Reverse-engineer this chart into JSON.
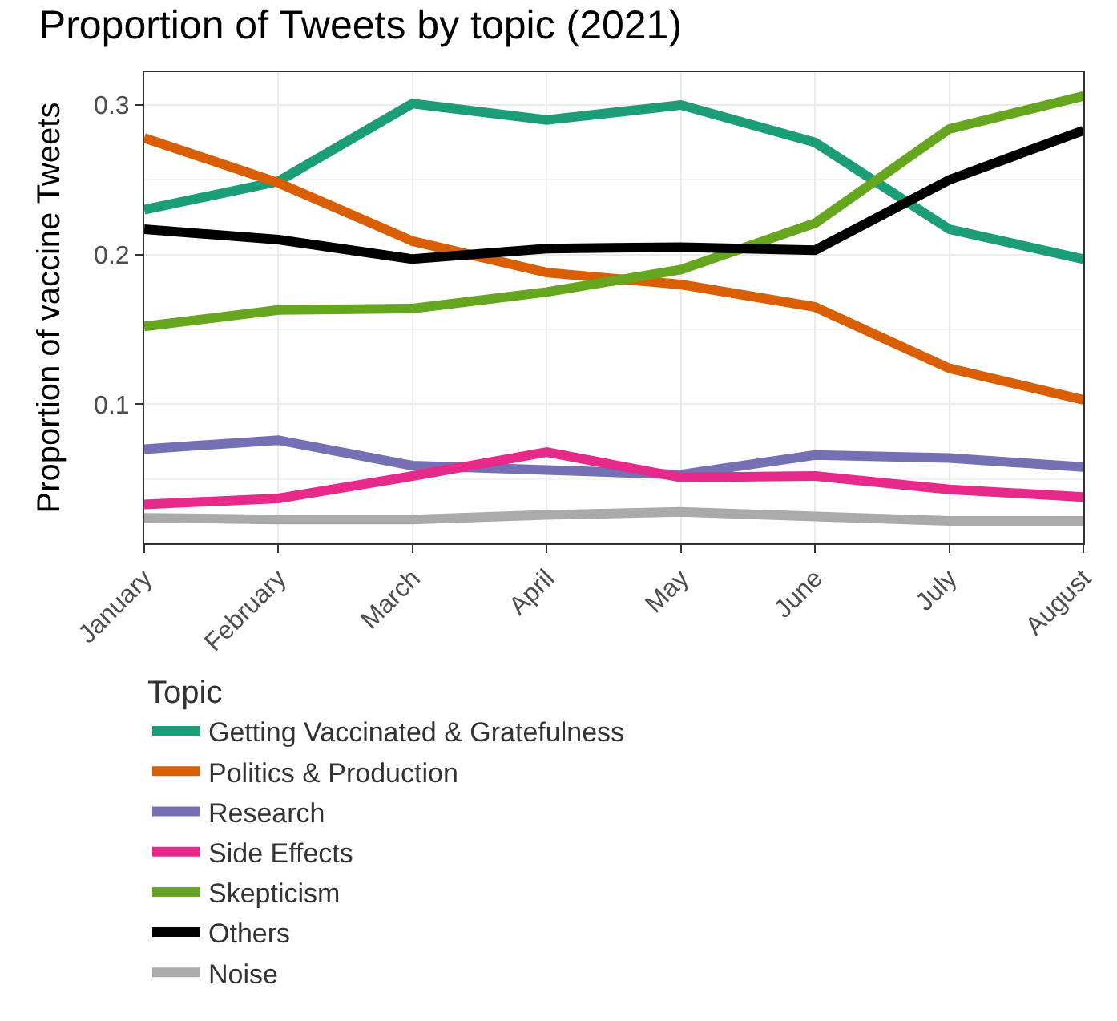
{
  "chart_data": {
    "type": "line",
    "title": "Proportion of Tweets by topic (2021)",
    "ylabel": "Proportion of vaccine Tweets",
    "legend_title": "Topic",
    "categories": [
      "January",
      "February",
      "March",
      "April",
      "May",
      "June",
      "July",
      "August"
    ],
    "series": [
      {
        "name": "Getting Vaccinated & Gratefulness",
        "color": "#1b9e77",
        "values": [
          0.23,
          0.249,
          0.301,
          0.29,
          0.3,
          0.275,
          0.217,
          0.197
        ]
      },
      {
        "name": "Politics & Production",
        "color": "#d95f02",
        "values": [
          0.278,
          0.248,
          0.209,
          0.188,
          0.18,
          0.165,
          0.124,
          0.103
        ]
      },
      {
        "name": "Research",
        "color": "#7570b3",
        "values": [
          0.07,
          0.076,
          0.059,
          0.056,
          0.053,
          0.066,
          0.064,
          0.058
        ]
      },
      {
        "name": "Side Effects",
        "color": "#e7298a",
        "values": [
          0.033,
          0.037,
          0.052,
          0.068,
          0.051,
          0.052,
          0.043,
          0.038
        ]
      },
      {
        "name": "Skepticism",
        "color": "#66a61e",
        "values": [
          0.152,
          0.163,
          0.164,
          0.175,
          0.19,
          0.221,
          0.284,
          0.306
        ]
      },
      {
        "name": "Others",
        "color": "#000000",
        "values": [
          0.217,
          0.21,
          0.197,
          0.204,
          0.205,
          0.203,
          0.25,
          0.283
        ]
      },
      {
        "name": "Noise",
        "color": "#aaaaaa",
        "values": [
          0.024,
          0.023,
          0.023,
          0.026,
          0.028,
          0.025,
          0.022,
          0.022
        ]
      }
    ],
    "ylim": [
      0.007,
      0.322
    ],
    "yticks": [
      0.1,
      0.2,
      0.3
    ],
    "grid": true,
    "legend": "bottom",
    "marker": "none",
    "line_style": "solid"
  }
}
